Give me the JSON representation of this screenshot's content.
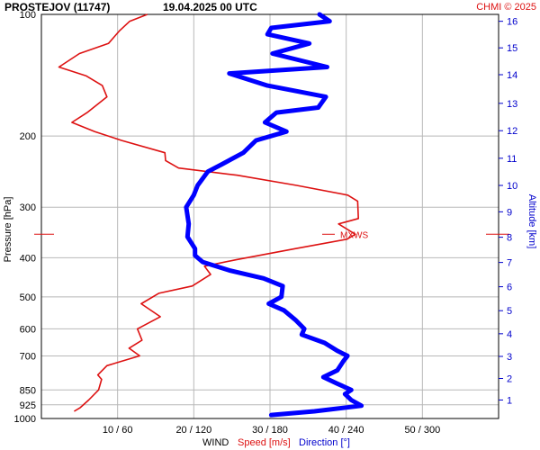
{
  "header": {
    "station": "PROSTEJOV (11747)",
    "datetime": "19.04.2025 00 UTC",
    "copyright": "CHMI © 2025"
  },
  "axes": {
    "left_label": "Pressure [hPa]",
    "right_label": "Altitude [km]",
    "bottom_prefix": "WIND",
    "bottom_speed": "Speed [m/s]",
    "bottom_direction": "Direction [°]",
    "mxws_label": "MXWS"
  },
  "colors": {
    "speed": "#dd1111",
    "direction": "#0000ff",
    "grid": "#b8b8b8",
    "text": "#000000"
  },
  "chart_data": {
    "type": "line",
    "y_axis": {
      "scale": "log",
      "range": [
        1000,
        100
      ],
      "ticks": [
        {
          "v": 100,
          "label": "100"
        },
        {
          "v": 200,
          "label": "200"
        },
        {
          "v": 300,
          "label": "300"
        },
        {
          "v": 400,
          "label": "400"
        },
        {
          "v": 500,
          "label": "500"
        },
        {
          "v": 600,
          "label": "600"
        },
        {
          "v": 700,
          "label": "700"
        },
        {
          "v": 850,
          "label": "850"
        },
        {
          "v": 925,
          "label": "925"
        },
        {
          "v": 1000,
          "label": "1000"
        }
      ]
    },
    "altitude_ticks": [
      {
        "km": 1,
        "p": 900,
        "label": "1"
      },
      {
        "km": 2,
        "p": 796,
        "label": "2"
      },
      {
        "km": 3,
        "p": 702,
        "label": "3"
      },
      {
        "km": 4,
        "p": 617,
        "label": "4"
      },
      {
        "km": 5,
        "p": 541,
        "label": "5"
      },
      {
        "km": 6,
        "p": 472,
        "label": "6"
      },
      {
        "km": 7,
        "p": 411,
        "label": "7"
      },
      {
        "km": 8,
        "p": 356,
        "label": "8"
      },
      {
        "km": 9,
        "p": 308,
        "label": "9"
      },
      {
        "km": 10,
        "p": 265,
        "label": "10"
      },
      {
        "km": 11,
        "p": 227,
        "label": "11"
      },
      {
        "km": 12,
        "p": 194,
        "label": "12"
      },
      {
        "km": 13,
        "p": 166,
        "label": "13"
      },
      {
        "km": 14,
        "p": 141,
        "label": "14"
      },
      {
        "km": 15,
        "p": 121,
        "label": "15"
      },
      {
        "km": 16,
        "p": 104,
        "label": "16"
      }
    ],
    "x_axis": {
      "speed_range": [
        0,
        60
      ],
      "direction_range": [
        0,
        360
      ],
      "ticks": [
        {
          "speed": 10,
          "label": "10 / 60"
        },
        {
          "speed": 20,
          "label": "20 / 120"
        },
        {
          "speed": 30,
          "label": "30 / 180"
        },
        {
          "speed": 40,
          "label": "40 / 240"
        },
        {
          "speed": 50,
          "label": "50 / 300"
        }
      ]
    },
    "mxws_pressure": 350,
    "series": [
      {
        "name": "Speed [m/s]",
        "units": "m/s",
        "points": [
          [
            960,
            4.3
          ],
          [
            940,
            5.1
          ],
          [
            900,
            6.2
          ],
          [
            850,
            7.5
          ],
          [
            800,
            7.9
          ],
          [
            780,
            7.4
          ],
          [
            740,
            8.6
          ],
          [
            700,
            12.9
          ],
          [
            670,
            11.5
          ],
          [
            640,
            13.2
          ],
          [
            600,
            12.6
          ],
          [
            560,
            15.6
          ],
          [
            520,
            13.1
          ],
          [
            490,
            15.4
          ],
          [
            470,
            19.8
          ],
          [
            440,
            22.2
          ],
          [
            420,
            21.4
          ],
          [
            405,
            25.5
          ],
          [
            380,
            33.3
          ],
          [
            360,
            40.1
          ],
          [
            350,
            41.2
          ],
          [
            330,
            39.0
          ],
          [
            320,
            41.6
          ],
          [
            290,
            41.5
          ],
          [
            280,
            40.2
          ],
          [
            265,
            33.5
          ],
          [
            250,
            25.7
          ],
          [
            240,
            18.0
          ],
          [
            230,
            16.3
          ],
          [
            220,
            16.2
          ],
          [
            205,
            10.5
          ],
          [
            195,
            7.0
          ],
          [
            185,
            4.0
          ],
          [
            175,
            6.0
          ],
          [
            160,
            8.6
          ],
          [
            150,
            8.0
          ],
          [
            142,
            5.9
          ],
          [
            135,
            2.3
          ],
          [
            125,
            5.0
          ],
          [
            118,
            8.8
          ],
          [
            110,
            10.2
          ],
          [
            104,
            11.6
          ],
          [
            100,
            13.9
          ]
        ]
      },
      {
        "name": "Direction [°]",
        "units": "°",
        "points": [
          [
            980,
            181
          ],
          [
            960,
            215
          ],
          [
            930,
            252
          ],
          [
            900,
            244
          ],
          [
            870,
            239
          ],
          [
            850,
            244
          ],
          [
            820,
            233
          ],
          [
            790,
            222
          ],
          [
            760,
            233
          ],
          [
            720,
            238
          ],
          [
            700,
            241
          ],
          [
            680,
            233
          ],
          [
            650,
            223
          ],
          [
            620,
            205
          ],
          [
            600,
            207
          ],
          [
            570,
            200
          ],
          [
            540,
            191
          ],
          [
            520,
            179
          ],
          [
            500,
            189
          ],
          [
            470,
            190
          ],
          [
            450,
            175
          ],
          [
            430,
            148
          ],
          [
            410,
            127
          ],
          [
            395,
            121
          ],
          [
            380,
            121
          ],
          [
            355,
            115
          ],
          [
            330,
            116
          ],
          [
            300,
            114
          ],
          [
            280,
            120
          ],
          [
            265,
            123
          ],
          [
            245,
            131
          ],
          [
            235,
            142
          ],
          [
            220,
            159
          ],
          [
            205,
            169
          ],
          [
            195,
            193
          ],
          [
            185,
            176
          ],
          [
            175,
            185
          ],
          [
            170,
            218
          ],
          [
            160,
            224
          ],
          [
            150,
            178
          ],
          [
            140,
            148
          ],
          [
            135,
            225
          ],
          [
            125,
            182
          ],
          [
            118,
            211
          ],
          [
            112,
            178
          ],
          [
            108,
            181
          ],
          [
            104,
            227
          ],
          [
            100,
            219
          ]
        ]
      }
    ]
  }
}
